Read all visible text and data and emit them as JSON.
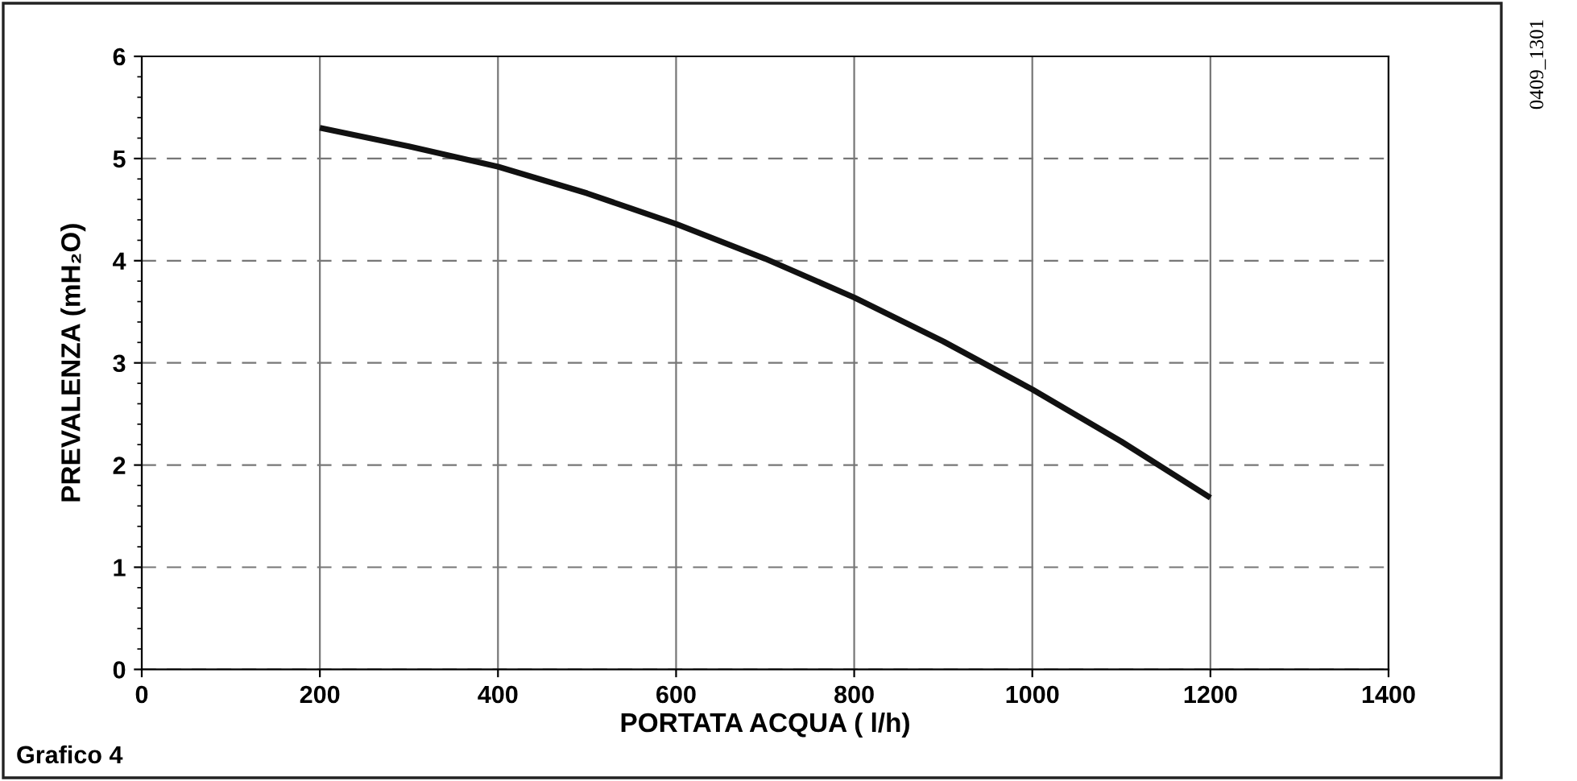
{
  "chart_data": {
    "type": "line",
    "xlabel": "PORTATA ACQUA ( l/h)",
    "ylabel": "PREVALENZA (mH₂O)",
    "x": [
      200,
      300,
      400,
      500,
      600,
      700,
      800,
      900,
      1000,
      1100,
      1200
    ],
    "series": [
      {
        "color": "#111111",
        "values": [
          5.3,
          5.12,
          4.92,
          4.66,
          4.36,
          4.02,
          3.64,
          3.21,
          2.74,
          2.23,
          1.68
        ]
      }
    ],
    "xlim": [
      0,
      1400
    ],
    "xticks": [
      0,
      200,
      400,
      600,
      800,
      1000,
      1200,
      1400
    ],
    "ylim": [
      0,
      6
    ],
    "yticks": [
      0,
      1,
      2,
      3,
      4,
      5,
      6
    ],
    "grid": true,
    "marker": "none",
    "line_style": "solid",
    "annotations": [
      "Grafico 4",
      "0409_1301"
    ]
  }
}
